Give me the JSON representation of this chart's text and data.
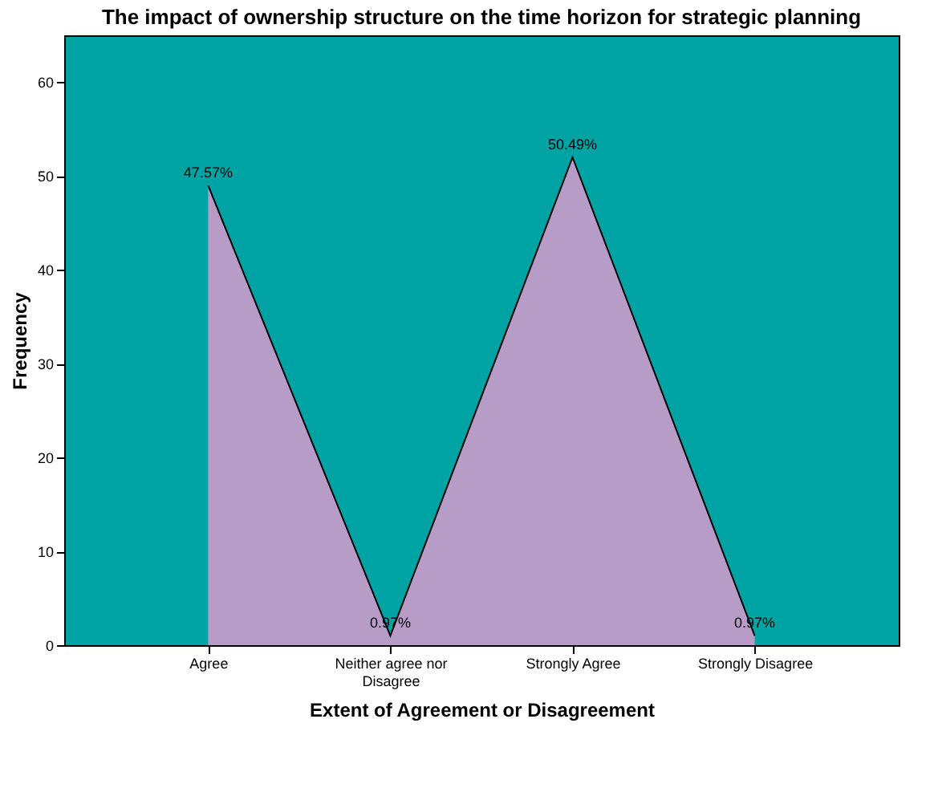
{
  "chart_data": {
    "type": "area",
    "title": "The impact of ownership structure on  the time horizon for strategic planning",
    "xlabel": "Extent of Agreement or Disagreement",
    "ylabel": "Frequency",
    "categories": [
      "Agree",
      "Neither agree nor Disagree",
      "Strongly Agree",
      "Strongly Disagree"
    ],
    "series": [
      {
        "color": "#b89cc8",
        "values": [
          49,
          1,
          52,
          1
        ]
      }
    ],
    "value_labels": [
      "47.57%",
      "0.97%",
      "50.49%",
      "0.97%"
    ],
    "ylim": [
      0,
      65
    ],
    "yticks": [
      0,
      10,
      20,
      30,
      40,
      50,
      60
    ],
    "grid": false
  }
}
